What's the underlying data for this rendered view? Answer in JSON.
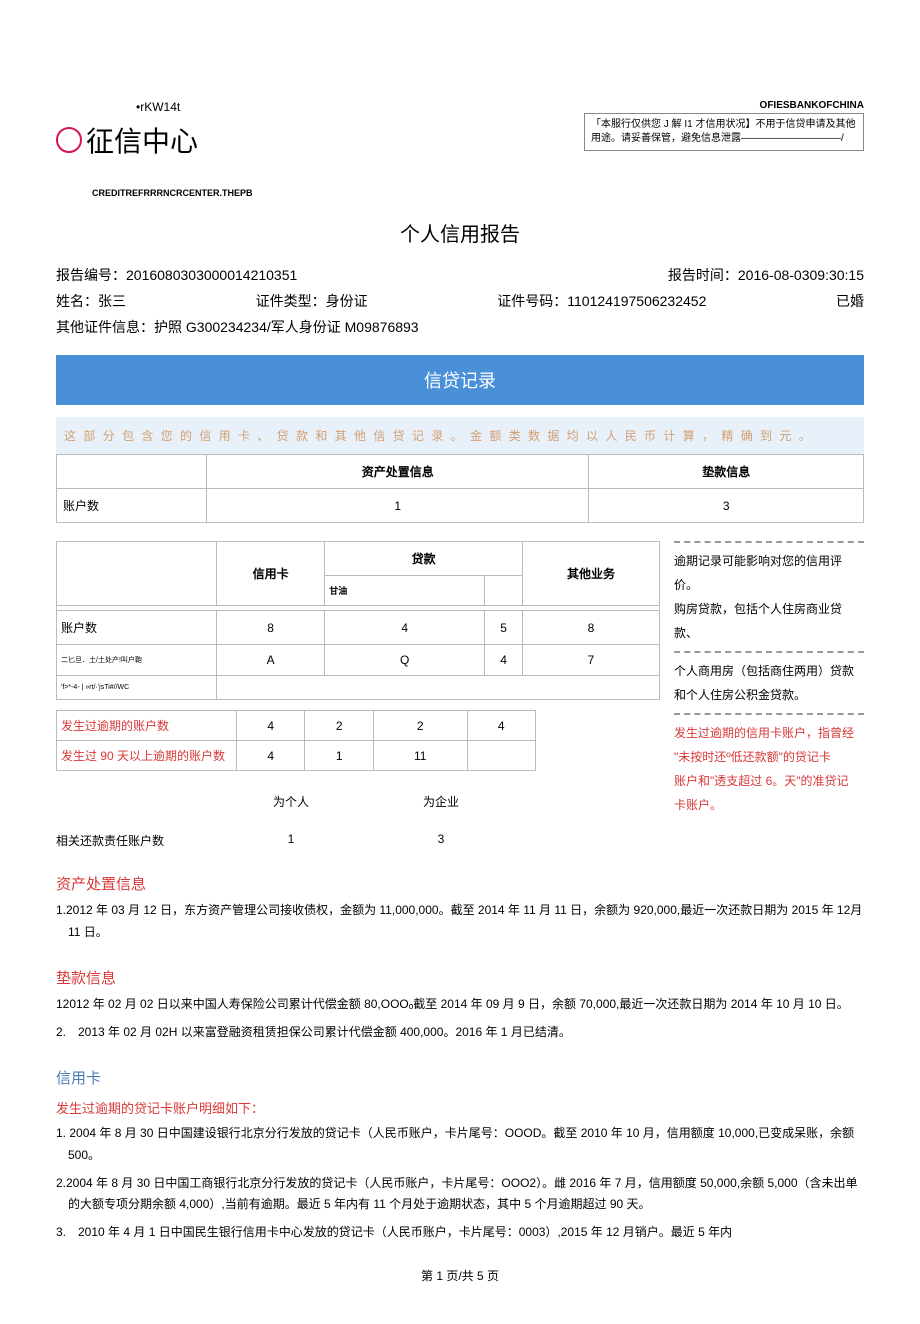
{
  "header": {
    "kw14t": "•rKW14t",
    "logo_text": "征信中心",
    "subtext": "CREDITREFRRRNCRCENTER.THEPB",
    "bank_name": "OFIESBANKOFCHINA",
    "notice": "「本服行仅供您 J 解 I1 才信用状况】不用于信贷申请及其他用途。请妥善保管，避免信息泄露——————————/"
  },
  "title": "个人信用报告",
  "report": {
    "number_label": "报告编号：",
    "number": "2016080303000014210351",
    "time_label": "报告时间：",
    "time": "2016-08-0309:30:15",
    "name_label": "姓名：",
    "name": "张三",
    "id_type_label": "证件类型：",
    "id_type": "身份证",
    "id_no_label": "证件号码：",
    "id_no": "110124197506232452",
    "marital": "已婚",
    "other_id_label": "其他证件信息：",
    "other_id": "护照 G300234234/军人身份证 M09876893"
  },
  "section1": {
    "banner": "信贷记录",
    "note": "这 部 分 包 含 您 的 信 用 卡 、 贷 款 和 其 他 信 贷 记 录 。 金 额 类 数 据 均 以 人 民 币 计 算 ， 精 确 到 元 。"
  },
  "table1": {
    "h1": "资产处置信息",
    "h2": "垫款信息",
    "r1": "账户数",
    "v1": "1",
    "v2": "3"
  },
  "table2": {
    "h_credit": "信用卡",
    "h_loan": "贷款",
    "h_sub": "甘油",
    "h_other": "其他业务",
    "r_acct": "账户数",
    "a1": "8",
    "a2": "4",
    "a3": "5",
    "a4": "8",
    "r_garble": "二匕旦．土/土处产!叫户鞄",
    "g1": "A",
    "g2": "Q",
    "g3": "4",
    "g4": "7",
    "r_garble2": "'f>*-4- |  »rt/·'jsTi#//WC"
  },
  "table3": {
    "r1": "发生过逾期的账户数",
    "r1v": [
      "4",
      "2",
      "2",
      "4"
    ],
    "r2": "发生过 90 天以上逾期的账户数",
    "r2v": [
      "4",
      "1",
      "11",
      ""
    ]
  },
  "guarantee": {
    "c1": "为个人",
    "c2": "为企业",
    "label": "相关还款责任账户数",
    "v1": "1",
    "v2": "3"
  },
  "side": {
    "p1": "逾期记录可能影响对您的信用评价。",
    "p2": "购房贷款，包括个人住房商业贷款、",
    "p3": "个人商用房（包括商住两用）贷款和个人住房公积金贷款。",
    "p4a": "发生过逾期的信用卡账户，指曾经",
    "p4b": "\"未按时还º低还款额\"的贷记卡",
    "p4c": "账户和\"透支超过 6。天\"的准贷记",
    "p4d": "卡账户。"
  },
  "asset": {
    "title": "资产处置信息",
    "p1": "1.2012 年 03 月 12 日，东方资产管理公司接收债权，金额为 11,000,000。截至 2014 年 11 月 11 日，余额为 920,000,最近一次还款日期为 2015 年 12月 11 日。"
  },
  "advance": {
    "title": "垫款信息",
    "p1": "12012 年 02 月 02 日以来中国人寿保险公司累计代偿金额 80,OOOₒ截至 2014 年 09 月 9 日，余额 70,000,最近一次还款日期为 2014 年 10 月 10 日。",
    "p2": "2.　2013 年 02 月 02H 以来富登融资租赁担保公司累计代偿金额 400,000。2016 年 1 月已结清。"
  },
  "creditcard": {
    "title": "信用卡",
    "subtitle": "发生过逾期的贷记卡账户明细如下：",
    "p1": "1. 2004 年 8 月 30 日中国建设银行北京分行发放的贷记卡（人民币账户，卡片尾号：OOOD。截至 2010 年 10 月，信用额度 10,000,已变成呆账，余额500。",
    "p2": "2.2004 年 8 月 30 日中国工商银行北京分行发放的贷记卡（人民币账户，卡片尾号：OOO2）。雌 2016 年 7 月，信用额度 50,000,余额 5,000（含未出单的大额专项分期余额 4,000）,当前有逾期。最近 5 年内有 11 个月处于逾期状态，其中 5 个月逾期超过 90 天。",
    "p3": "3.　2010 年 4 月 1 日中国民生银行信用卡中心发放的贷记卡（人民币账户，卡片尾号：0003）,2015 年 12 月销户。最近 5 年内"
  },
  "footer": "第 1 页/共 5 页"
}
